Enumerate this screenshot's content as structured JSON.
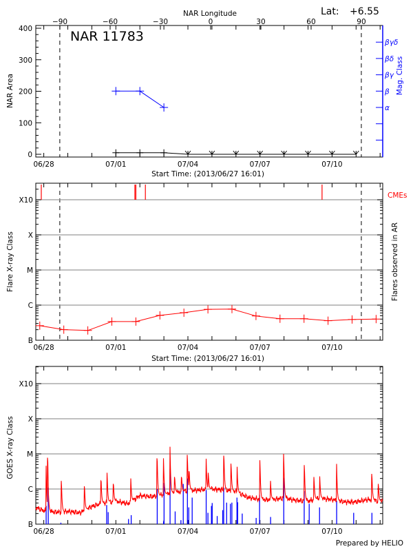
{
  "lat_label": "Lat:",
  "lat_value": "+6.55",
  "footer": "Prepared by HELIO",
  "colors": {
    "area": "#000000",
    "mag_class": "#0000ff",
    "flares": "#ff0000",
    "cmes": "#ff0000",
    "goes": "#ff0000",
    "ar_flares": "#0000ff",
    "grid": "#999999"
  },
  "chart_data": [
    {
      "type": "line",
      "title": "NAR 11783",
      "xlabel": "Start Time: (2013/06/27 16:01)",
      "x2label": "NAR Longitude",
      "ylabel": "NAR Area",
      "y2label": "Mag. Class",
      "xlim": [
        "2013-06-27T16:01",
        "2013-07-12T02:35"
      ],
      "xticks": [
        "06/28",
        "07/01",
        "07/04",
        "07/07",
        "07/10"
      ],
      "x2ticks": [
        -90,
        -60,
        -30,
        0,
        30,
        60,
        90
      ],
      "ylim": [
        0,
        400
      ],
      "yticks": [
        0,
        100,
        200,
        300,
        400
      ],
      "y2ticks": [
        "α",
        "β",
        "βγ",
        "βδ",
        "βγδ"
      ],
      "limb_times": [
        "2013-06-28T16:00",
        "2013-07-11T05:15"
      ],
      "area": [
        {
          "t": "2013-07-01T00:00",
          "v": 5
        },
        {
          "t": "2013-07-02T00:00",
          "v": 5
        },
        {
          "t": "2013-07-03T00:00",
          "v": 5
        },
        {
          "t": "2013-07-04T00:00",
          "v": 0
        },
        {
          "t": "2013-07-05T00:00",
          "v": 0
        },
        {
          "t": "2013-07-06T00:00",
          "v": 0
        },
        {
          "t": "2013-07-07T00:00",
          "v": 0
        },
        {
          "t": "2013-07-08T00:00",
          "v": 0
        },
        {
          "t": "2013-07-09T00:00",
          "v": 0
        },
        {
          "t": "2013-07-10T00:00",
          "v": 0
        },
        {
          "t": "2013-07-11T00:00",
          "v": 0
        }
      ],
      "mag_class": [
        {
          "t": "2013-07-01T00:00",
          "v": "β"
        },
        {
          "t": "2013-07-02T00:00",
          "v": "β"
        },
        {
          "t": "2013-07-03T00:00",
          "v": "α"
        }
      ]
    },
    {
      "type": "line",
      "xlabel": "Start Time: (2013/06/27 16:01)",
      "ylabel": "Flare X-ray Class",
      "y2label": "Flares observed in AR",
      "cme_label": "CMEs",
      "xlim": [
        "2013-06-27T16:01",
        "2013-07-12T02:35"
      ],
      "xticks": [
        "06/28",
        "07/01",
        "07/04",
        "07/07",
        "07/10"
      ],
      "yscale": "log",
      "yticks": [
        "B",
        "C",
        "M",
        "X",
        "X10"
      ],
      "grid": true,
      "limb_times": [
        "2013-06-28T16:00",
        "2013-07-11T05:15"
      ],
      "flares": [
        {
          "t": "2013-06-27T20:00",
          "v": "B2.6"
        },
        {
          "t": "2013-06-28T20:00",
          "v": "B2.0"
        },
        {
          "t": "2013-06-29T20:00",
          "v": "B1.9"
        },
        {
          "t": "2013-06-30T20:00",
          "v": "B3.4"
        },
        {
          "t": "2013-07-01T20:00",
          "v": "B3.4"
        },
        {
          "t": "2013-07-02T20:00",
          "v": "B5.1"
        },
        {
          "t": "2013-07-03T20:00",
          "v": "B6.1"
        },
        {
          "t": "2013-07-04T20:00",
          "v": "B7.6"
        },
        {
          "t": "2013-07-05T20:00",
          "v": "B7.7"
        },
        {
          "t": "2013-07-06T20:00",
          "v": "B4.9"
        },
        {
          "t": "2013-07-07T20:00",
          "v": "B4.1"
        },
        {
          "t": "2013-07-08T20:00",
          "v": "B4.1"
        },
        {
          "t": "2013-07-09T20:00",
          "v": "B3.6"
        },
        {
          "t": "2013-07-10T20:00",
          "v": "B3.9"
        },
        {
          "t": "2013-07-11T20:00",
          "v": "B4.0"
        }
      ],
      "cmes": [
        "2013-06-27T21:30",
        "2013-07-01T19:00",
        "2013-07-01T20:00",
        "2013-07-02T05:30",
        "2013-07-09T14:00"
      ]
    },
    {
      "type": "line",
      "ylabel": "GOES X-ray Class",
      "xlim": [
        "2013-06-27T16:01",
        "2013-07-12T02:35"
      ],
      "xticks": [
        "06/28",
        "07/01",
        "07/04",
        "07/07",
        "07/10"
      ],
      "yscale": "log",
      "yticks": [
        "B",
        "C",
        "M",
        "X",
        "X10"
      ],
      "grid": true,
      "goes_baseline": [
        {
          "t": "2013-06-27T16:01",
          "v": "B3.0"
        },
        {
          "t": "2013-06-28T00:00",
          "v": "B2.4"
        },
        {
          "t": "2013-06-28T12:00",
          "v": "B2.2"
        },
        {
          "t": "2013-06-29T00:00",
          "v": "B2.3"
        },
        {
          "t": "2013-06-29T12:00",
          "v": "B2.1"
        },
        {
          "t": "2013-06-30T00:00",
          "v": "B3.2"
        },
        {
          "t": "2013-06-30T12:00",
          "v": "B4.0"
        },
        {
          "t": "2013-07-01T00:00",
          "v": "B4.5"
        },
        {
          "t": "2013-07-01T12:00",
          "v": "B3.8"
        },
        {
          "t": "2013-07-02T00:00",
          "v": "B6.5"
        },
        {
          "t": "2013-07-02T12:00",
          "v": "B6.0"
        },
        {
          "t": "2013-07-03T00:00",
          "v": "B7.0"
        },
        {
          "t": "2013-07-03T12:00",
          "v": "B8.0"
        },
        {
          "t": "2013-07-04T00:00",
          "v": "B9.0"
        },
        {
          "t": "2013-07-04T12:00",
          "v": "B9.4"
        },
        {
          "t": "2013-07-05T00:00",
          "v": "C1.0"
        },
        {
          "t": "2013-07-05T12:00",
          "v": "B9.5"
        },
        {
          "t": "2013-07-06T00:00",
          "v": "B8.5"
        },
        {
          "t": "2013-07-06T12:00",
          "v": "B5.8"
        },
        {
          "t": "2013-07-07T00:00",
          "v": "B5.0"
        },
        {
          "t": "2013-07-07T12:00",
          "v": "B5.0"
        },
        {
          "t": "2013-07-08T00:00",
          "v": "B5.5"
        },
        {
          "t": "2013-07-08T12:00",
          "v": "B4.8"
        },
        {
          "t": "2013-07-09T00:00",
          "v": "B4.5"
        },
        {
          "t": "2013-07-09T12:00",
          "v": "B5.5"
        },
        {
          "t": "2013-07-10T00:00",
          "v": "B5.0"
        },
        {
          "t": "2013-07-10T12:00",
          "v": "B4.3"
        },
        {
          "t": "2013-07-11T00:00",
          "v": "B4.3"
        },
        {
          "t": "2013-07-11T12:00",
          "v": "B5.0"
        },
        {
          "t": "2013-07-12T02:35",
          "v": "B4.4"
        }
      ],
      "goes_peaks": [
        {
          "t": "2013-06-28T02:22",
          "v": "C4.6"
        },
        {
          "t": "2013-06-28T04:00",
          "v": "C7.8"
        },
        {
          "t": "2013-06-28T17:40",
          "v": "C1.7"
        },
        {
          "t": "2013-06-29T16:45",
          "v": "C1.2"
        },
        {
          "t": "2013-06-30T09:20",
          "v": "C1.7"
        },
        {
          "t": "2013-06-30T15:20",
          "v": "C2.9"
        },
        {
          "t": "2013-06-30T21:40",
          "v": "C1.4"
        },
        {
          "t": "2013-07-01T15:00",
          "v": "C2.0"
        },
        {
          "t": "2013-07-02T17:20",
          "v": "C7.5"
        },
        {
          "t": "2013-07-02T23:40",
          "v": "C7.5"
        },
        {
          "t": "2013-07-03T06:10",
          "v": "M1.6"
        },
        {
          "t": "2013-07-03T10:50",
          "v": "C2.2"
        },
        {
          "t": "2013-07-03T17:45",
          "v": "C2.2"
        },
        {
          "t": "2013-07-03T23:30",
          "v": "C9.4"
        },
        {
          "t": "2013-07-04T01:20",
          "v": "C3.2"
        },
        {
          "t": "2013-07-04T18:15",
          "v": "C7.3"
        },
        {
          "t": "2013-07-04T20:25",
          "v": "C2.9"
        },
        {
          "t": "2013-07-05T12:00",
          "v": "C8.9"
        },
        {
          "t": "2013-07-05T19:10",
          "v": "C5.3"
        },
        {
          "t": "2013-07-06T01:10",
          "v": "C4.3"
        },
        {
          "t": "2013-07-07T00:00",
          "v": "C6.6"
        },
        {
          "t": "2013-07-07T10:35",
          "v": "C1.7"
        },
        {
          "t": "2013-07-07T23:45",
          "v": "M1.0"
        },
        {
          "t": "2013-07-08T20:25",
          "v": "C4.8"
        },
        {
          "t": "2013-07-09T06:00",
          "v": "C2.2"
        },
        {
          "t": "2013-07-09T11:45",
          "v": "C2.3"
        },
        {
          "t": "2013-07-10T04:35",
          "v": "C5.2"
        },
        {
          "t": "2013-07-11T15:50",
          "v": "C2.7"
        },
        {
          "t": "2013-07-11T22:20",
          "v": "C1.4"
        }
      ],
      "ar_flares": [
        {
          "t": "2013-06-28T02:22",
          "v": "B3.3"
        },
        {
          "t": "2013-06-28T04:28",
          "v": "C1.1"
        },
        {
          "t": "2013-06-28T17:05",
          "v": "B1.1"
        },
        {
          "t": "2013-06-30T14:50",
          "v": "B3.5"
        },
        {
          "t": "2013-06-30T16:20",
          "v": "B2.2"
        },
        {
          "t": "2013-07-01T12:40",
          "v": "B1.4"
        },
        {
          "t": "2013-07-01T15:20",
          "v": "B1.8"
        },
        {
          "t": "2013-07-02T17:20",
          "v": "C1.0"
        },
        {
          "t": "2013-07-02T23:40",
          "v": "B1.2"
        },
        {
          "t": "2013-07-03T00:10",
          "v": "C1.5"
        },
        {
          "t": "2013-07-03T06:10",
          "v": "C3.7"
        },
        {
          "t": "2013-07-03T11:15",
          "v": "B2.3"
        },
        {
          "t": "2013-07-03T17:00",
          "v": "B1.3"
        },
        {
          "t": "2013-07-03T19:20",
          "v": "C1.4"
        },
        {
          "t": "2013-07-03T23:30",
          "v": "C2.0"
        },
        {
          "t": "2013-07-04T00:50",
          "v": "B3.0"
        },
        {
          "t": "2013-07-04T04:15",
          "v": "B5.7"
        },
        {
          "t": "2013-07-04T18:15",
          "v": "B9.4"
        },
        {
          "t": "2013-07-04T20:00",
          "v": "B2.1"
        },
        {
          "t": "2013-07-04T23:30",
          "v": "B3.3"
        },
        {
          "t": "2013-07-05T00:15",
          "v": "B4.0"
        },
        {
          "t": "2013-07-05T05:15",
          "v": "B1.7"
        },
        {
          "t": "2013-07-05T10:45",
          "v": "B2.5"
        },
        {
          "t": "2013-07-05T11:45",
          "v": "C1.1"
        },
        {
          "t": "2013-07-05T14:40",
          "v": "B4.1"
        },
        {
          "t": "2013-07-05T18:25",
          "v": "B3.8"
        },
        {
          "t": "2013-07-05T19:55",
          "v": "B4.1"
        },
        {
          "t": "2013-07-06T01:00",
          "v": "B5.7"
        },
        {
          "t": "2013-07-06T01:40",
          "v": "B4.2"
        },
        {
          "t": "2013-07-06T06:15",
          "v": "B2.0"
        },
        {
          "t": "2013-07-06T20:10",
          "v": "B1.5"
        },
        {
          "t": "2013-07-06T23:35",
          "v": "B6.8"
        },
        {
          "t": "2013-07-07T10:35",
          "v": "B1.6"
        },
        {
          "t": "2013-07-07T23:45",
          "v": "C2.1"
        },
        {
          "t": "2013-07-08T20:10",
          "v": "B8.7"
        },
        {
          "t": "2013-07-09T01:10",
          "v": "B3.8"
        },
        {
          "t": "2013-07-09T11:30",
          "v": "B3.0"
        },
        {
          "t": "2013-07-10T04:35",
          "v": "B4.6"
        },
        {
          "t": "2013-07-10T21:35",
          "v": "B2.1"
        },
        {
          "t": "2013-07-11T15:50",
          "v": "B2.1"
        }
      ]
    }
  ]
}
